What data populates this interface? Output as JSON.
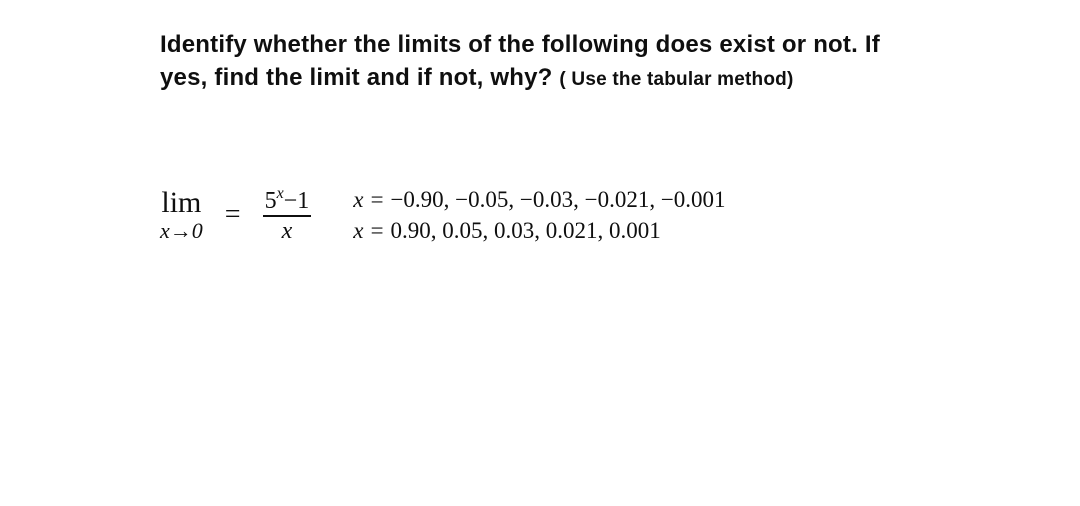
{
  "colors": {
    "background": "#ffffff",
    "text": "#0f0f0f"
  },
  "typography": {
    "prompt_font": "Arial",
    "prompt_size_pt": 24,
    "prompt_sub_size_pt": 19,
    "math_font": "Times New Roman",
    "lim_size_pt": 30,
    "lim_sub_size_pt": 22,
    "fraction_size_pt": 24,
    "values_size_pt": 23
  },
  "prompt": {
    "line1": "Identify whether the limits of the following does exist or not. If",
    "line2a": "yes, find the limit and if not, why? ",
    "line2b": "( Use the tabular method)"
  },
  "limit": {
    "lim_text": "lim",
    "tendsto": "x→0",
    "equals": "=",
    "numerator_base": "5",
    "numerator_exp": "x",
    "numerator_rest": "−1",
    "denominator": "x"
  },
  "xvalues": {
    "negline_prefix": "x = ",
    "negline_values": "−0.90, −0.05, −0.03, −0.021, −0.001",
    "posline_prefix": "x = ",
    "posline_values": "0.90, 0.05, 0.03, 0.021, 0.001"
  }
}
